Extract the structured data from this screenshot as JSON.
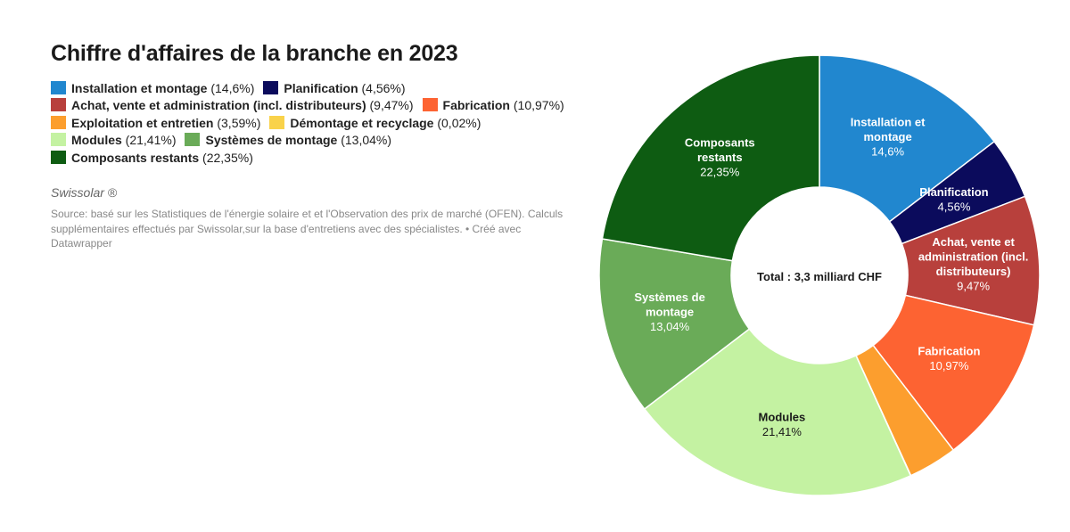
{
  "title": "Chiffre d'affaires de la branche en 2023",
  "byline": "Swissolar ®",
  "source": "Source: basé sur les Statistiques de l'énergie solaire et et l'Observation des prix de marché (OFEN). Calculs supplémentaires effectués par Swissolar,sur la base d'entretiens avec des spécialistes. • Créé avec Datawrapper",
  "legend_rows": [
    [
      0,
      1
    ],
    [
      2,
      3
    ],
    [
      4,
      5
    ],
    [
      6,
      7
    ],
    [
      8
    ]
  ],
  "chart_data": {
    "type": "pie",
    "donut": true,
    "title": "Chiffre d'affaires de la branche en 2023",
    "center_label": "Total : 3,3 milliard CHF",
    "legend_placement": "top-left",
    "slices": [
      {
        "name": "Installation et montage",
        "value": 14.6,
        "value_text": "14,6%",
        "legend_value": "(14,6%)",
        "color": "#2187cf",
        "label_lines": [
          "Installation et",
          "montage"
        ],
        "label_color": "#ffffff"
      },
      {
        "name": "Planification",
        "value": 4.56,
        "value_text": "4,56%",
        "legend_value": "(4,56%)",
        "color": "#0b0b5c",
        "label_lines": [
          "Planification"
        ],
        "label_color": "#ffffff"
      },
      {
        "name": "Achat, vente et administration (incl. distributeurs)",
        "value": 9.47,
        "value_text": "9,47%",
        "legend_value": "(9,47%)",
        "color": "#b8403c",
        "label_lines": [
          "Achat, vente et",
          "administration (incl.",
          "distributeurs)"
        ],
        "label_color": "#ffffff"
      },
      {
        "name": "Fabrication",
        "value": 10.97,
        "value_text": "10,97%",
        "legend_value": "(10,97%)",
        "color": "#fd6332",
        "label_lines": [
          "Fabrication"
        ],
        "label_color": "#ffffff"
      },
      {
        "name": "Exploitation et entretien",
        "value": 3.59,
        "value_text": "",
        "legend_value": "(3,59%)",
        "color": "#fc9e2e",
        "label_lines": [],
        "label_color": "#ffffff"
      },
      {
        "name": "Démontage et recyclage",
        "value": 0.02,
        "value_text": "",
        "legend_value": "(0,02%)",
        "color": "#f9d24a",
        "label_lines": [],
        "label_color": "#222222"
      },
      {
        "name": "Modules",
        "value": 21.41,
        "value_text": "21,41%",
        "legend_value": "(21,41%)",
        "color": "#c4f2a2",
        "label_lines": [
          "Modules"
        ],
        "label_color": "#1a1a1a"
      },
      {
        "name": "Systèmes de montage",
        "value": 13.04,
        "value_text": "13,04%",
        "legend_value": "(13,04%)",
        "color": "#6aab58",
        "label_lines": [
          "Systèmes de",
          "montage"
        ],
        "label_color": "#ffffff"
      },
      {
        "name": "Composants restants",
        "value": 22.35,
        "value_text": "22,35%",
        "legend_value": "(22,35%)",
        "color": "#0e5c12",
        "label_lines": [
          "Composants",
          "restants"
        ],
        "label_color": "#ffffff"
      }
    ]
  }
}
